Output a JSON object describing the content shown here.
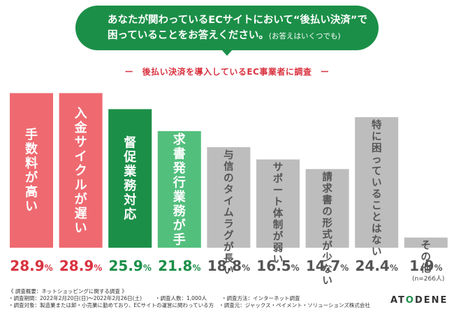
{
  "title": {
    "line1": "あなたが関わっているECサイトにおいて“後払い決済”で",
    "line2": "困っていることをお答えください。",
    "note": "(お答えはいくつでも)"
  },
  "subtitle": "ー　後払い決済を導入しているEC事業者に調査　ー",
  "sample_note": "(n=266人)",
  "footer": {
    "heading": "《 調査概要：ネットショッピングに関する調査 》",
    "period": "・調査期間：2022年2月20日(日)～2022年2月26日(土)",
    "people": "・調査人数：1,000人",
    "method": "・調査方法：インターネット調査",
    "target": "・調査対象：製造業または卸・小売業に勤めており、ECサイトの運営に関わっている方",
    "source": "・調査元：ジャックス・ペイメント・ソリューションズ株式会社"
  },
  "logo": {
    "part1": "AT",
    "part2": "O",
    "part3": "DENE"
  },
  "colors": {
    "red": "#ee6a70",
    "dark_green": "#1b8f48",
    "light_green": "#53bf7d",
    "gray": "#bdbdbd",
    "pct_red": "#d9323f",
    "pct_green": "#1b8f48",
    "pct_gray": "#555555"
  },
  "chart_data": {
    "type": "bar",
    "unit": "%",
    "ylim": [
      0,
      30
    ],
    "categories": [
      "手数料が高い",
      "入金サイクルが遅い",
      "督促業務対応",
      "請求書発行業務が手間",
      "与信のタイムラグが長い",
      "サポート体制が弱い",
      "請求書の形式が少ない",
      "特に困っていることはない",
      "その他"
    ],
    "values": [
      28.9,
      28.9,
      25.9,
      21.8,
      18.8,
      16.5,
      14.7,
      24.4,
      1.9
    ],
    "bar_colors": [
      "red",
      "red",
      "dark_green",
      "light_green",
      "gray",
      "gray",
      "gray",
      "gray",
      "gray"
    ],
    "label_colors": [
      "white",
      "white",
      "white",
      "white",
      "dark",
      "dark",
      "dark",
      "dark",
      "dark"
    ]
  }
}
